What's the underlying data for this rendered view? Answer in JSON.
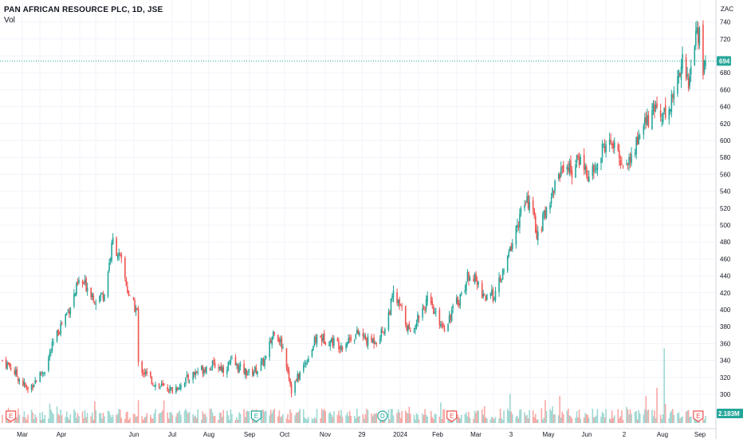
{
  "header": {
    "symbol": "PAN AFRICAN RESOURCE PLC, 1D, JSE",
    "volume_label": "Vol"
  },
  "currency": "ZAC",
  "last_price_tag": "694",
  "volume_tag": "2.183M",
  "event_markers": [
    {
      "type": "E",
      "label": "E",
      "date": "2023-02-24"
    },
    {
      "type": "E",
      "label": "E",
      "date": "2023-09-14"
    },
    {
      "type": "D",
      "label": "D",
      "date": "2023-12-27"
    },
    {
      "type": "E",
      "label": "E",
      "date": "2024-02-22"
    },
    {
      "type": "E",
      "label": "E",
      "date": "2024-09-12"
    }
  ],
  "colors": {
    "up": "#26a69a",
    "down": "#ef5350",
    "up_volume": "#9fd8d2",
    "down_volume": "#f7a9a7",
    "grid": "#f0f3fa",
    "price_line": "#26a69a",
    "tag_bg": "#26a69a"
  },
  "chart_data": {
    "type": "candlestick",
    "title": "PAN AFRICAN RESOURCE PLC, 1D, JSE",
    "y_unit": "ZAC",
    "y_ticks": [
      300,
      320,
      340,
      360,
      380,
      400,
      420,
      440,
      460,
      480,
      500,
      520,
      540,
      560,
      580,
      600,
      620,
      640,
      660,
      680,
      700,
      720,
      740
    ],
    "x_tick_labels": [
      "Mar",
      "Apr",
      "Jun",
      "Jul",
      "Aug",
      "Sep",
      "Oct",
      "Nov",
      "29",
      "2024",
      "Feb",
      "Mar",
      "3",
      "May",
      "Jun",
      "2",
      "Aug",
      "Sep"
    ],
    "ylim": [
      280,
      748
    ],
    "grid": true,
    "last_price": 694,
    "last_volume": "2.183M",
    "x_start": "2023-02-17",
    "x_end": "2024-09-18",
    "price_path": [
      [
        "2023-02-17",
        340
      ],
      [
        "2023-02-24",
        332
      ],
      [
        "2023-03-03",
        318
      ],
      [
        "2023-03-10",
        305
      ],
      [
        "2023-03-17",
        318
      ],
      [
        "2023-03-24",
        330
      ],
      [
        "2023-03-31",
        360
      ],
      [
        "2023-04-07",
        385
      ],
      [
        "2023-04-14",
        405
      ],
      [
        "2023-04-21",
        432
      ],
      [
        "2023-04-28",
        428
      ],
      [
        "2023-05-05",
        412
      ],
      [
        "2023-05-12",
        420
      ],
      [
        "2023-05-19",
        482
      ],
      [
        "2023-05-26",
        455
      ],
      [
        "2023-06-02",
        412
      ],
      [
        "2023-06-08",
        398
      ],
      [
        "2023-06-09",
        335
      ],
      [
        "2023-06-16",
        322
      ],
      [
        "2023-06-23",
        312
      ],
      [
        "2023-06-30",
        308
      ],
      [
        "2023-07-07",
        305
      ],
      [
        "2023-07-14",
        312
      ],
      [
        "2023-07-21",
        320
      ],
      [
        "2023-07-28",
        328
      ],
      [
        "2023-08-04",
        332
      ],
      [
        "2023-08-11",
        335
      ],
      [
        "2023-08-18",
        330
      ],
      [
        "2023-08-25",
        338
      ],
      [
        "2023-09-01",
        330
      ],
      [
        "2023-09-08",
        325
      ],
      [
        "2023-09-15",
        330
      ],
      [
        "2023-09-22",
        342
      ],
      [
        "2023-09-29",
        378
      ],
      [
        "2023-10-06",
        355
      ],
      [
        "2023-10-10",
        330
      ],
      [
        "2023-10-13",
        305
      ],
      [
        "2023-10-20",
        325
      ],
      [
        "2023-10-27",
        345
      ],
      [
        "2023-11-03",
        368
      ],
      [
        "2023-11-10",
        365
      ],
      [
        "2023-11-17",
        362
      ],
      [
        "2023-11-24",
        358
      ],
      [
        "2023-12-01",
        368
      ],
      [
        "2023-12-08",
        372
      ],
      [
        "2023-12-15",
        362
      ],
      [
        "2023-12-22",
        365
      ],
      [
        "2023-12-29",
        378
      ],
      [
        "2024-01-05",
        418
      ],
      [
        "2024-01-12",
        398
      ],
      [
        "2024-01-19",
        370
      ],
      [
        "2024-01-26",
        395
      ],
      [
        "2024-02-02",
        410
      ],
      [
        "2024-02-09",
        392
      ],
      [
        "2024-02-16",
        380
      ],
      [
        "2024-02-23",
        400
      ],
      [
        "2024-03-01",
        418
      ],
      [
        "2024-03-08",
        445
      ],
      [
        "2024-03-15",
        428
      ],
      [
        "2024-03-22",
        412
      ],
      [
        "2024-03-29",
        420
      ],
      [
        "2024-04-05",
        445
      ],
      [
        "2024-04-12",
        480
      ],
      [
        "2024-04-19",
        515
      ],
      [
        "2024-04-26",
        530
      ],
      [
        "2024-05-03",
        485
      ],
      [
        "2024-05-10",
        520
      ],
      [
        "2024-05-17",
        548
      ],
      [
        "2024-05-24",
        572
      ],
      [
        "2024-05-31",
        565
      ],
      [
        "2024-06-07",
        580
      ],
      [
        "2024-06-14",
        555
      ],
      [
        "2024-06-21",
        570
      ],
      [
        "2024-06-28",
        600
      ],
      [
        "2024-07-05",
        590
      ],
      [
        "2024-07-12",
        572
      ],
      [
        "2024-07-19",
        578
      ],
      [
        "2024-07-26",
        610
      ],
      [
        "2024-08-02",
        625
      ],
      [
        "2024-08-09",
        640
      ],
      [
        "2024-08-16",
        630
      ],
      [
        "2024-08-23",
        655
      ],
      [
        "2024-08-30",
        700
      ],
      [
        "2024-09-04",
        662
      ],
      [
        "2024-09-06",
        690
      ],
      [
        "2024-09-10",
        725
      ],
      [
        "2024-09-13",
        728
      ],
      [
        "2024-09-16",
        685
      ],
      [
        "2024-09-18",
        694
      ]
    ]
  }
}
